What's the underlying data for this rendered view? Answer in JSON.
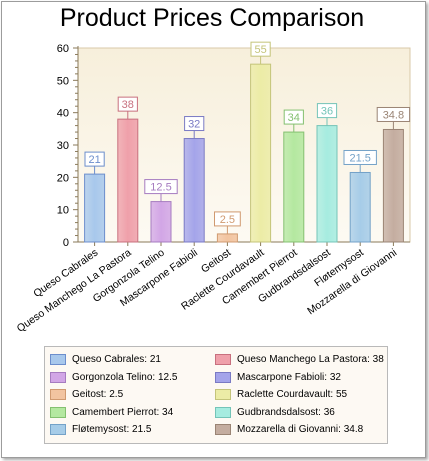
{
  "chart_data": {
    "type": "bar",
    "title": "Product Prices Comparison",
    "xlabel": "",
    "ylabel": "",
    "ylim": [
      0,
      60
    ],
    "yticks": [
      0,
      10,
      20,
      30,
      40,
      50,
      60
    ],
    "grid": false,
    "legend_position": "bottom",
    "categories": [
      "Queso Cabrales",
      "Queso Manchego La Pastora",
      "Gorgonzola Telino",
      "Mascarpone Fabioli",
      "Geitost",
      "Raclette Courdavault",
      "Camembert Pierrot",
      "Gudbrandsdalsost",
      "Fløtemysost",
      "Mozzarella di Giovanni"
    ],
    "values": [
      21,
      38,
      12.5,
      32,
      2.5,
      55,
      34,
      36,
      21.5,
      34.8
    ],
    "value_labels": [
      "21",
      "38",
      "12.5",
      "32",
      "2.5",
      "55",
      "34",
      "36",
      "21.5",
      "34.8"
    ],
    "colors": [
      "#a8c8ec",
      "#efa0aa",
      "#d2a6e6",
      "#a4a4ea",
      "#f2c4a0",
      "#ececa6",
      "#b4e8a0",
      "#a6ece0",
      "#a6cce8",
      "#c4ada0"
    ],
    "border_colors": [
      "#6c8ecc",
      "#c8707e",
      "#a67cc0",
      "#7a7ac4",
      "#d09a70",
      "#c4c47a",
      "#84c070",
      "#74c4b8",
      "#74a2c8",
      "#9a8474"
    ],
    "legend": [
      "Queso Cabrales: 21",
      "Queso Manchego La Pastora: 38",
      "Gorgonzola Telino: 12.5",
      "Mascarpone Fabioli: 32",
      "Geitost: 2.5",
      "Raclette Courdavault: 55",
      "Camembert Pierrot: 34",
      "Gudbrandsdalsost: 36",
      "Fløtemysost: 21.5",
      "Mozzarella di Giovanni: 34.8"
    ]
  }
}
